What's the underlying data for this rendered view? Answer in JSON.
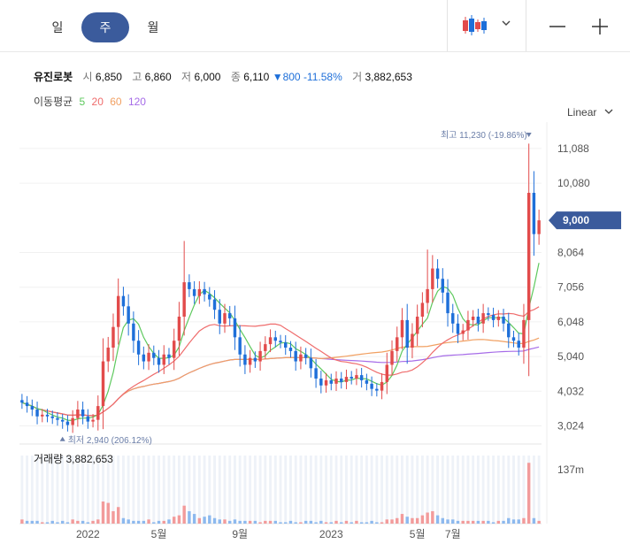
{
  "period_tabs": [
    {
      "label": "일",
      "active": false
    },
    {
      "label": "주",
      "active": true
    },
    {
      "label": "월",
      "active": false
    }
  ],
  "toolbar": {
    "chart_type_icon": "candlestick-icon",
    "dropdown_icon": "chevron-down-icon",
    "zoom_out_icon": "minus-icon",
    "zoom_in_icon": "plus-icon"
  },
  "stock": {
    "name": "유진로봇",
    "open_label": "시",
    "open": "6,850",
    "high_label": "고",
    "high": "6,860",
    "low_label": "저",
    "low": "6,000",
    "close_label": "종",
    "close": "6,110",
    "change": "▼800",
    "change_pct": "-11.58%",
    "volume_label": "거",
    "volume": "3,882,653"
  },
  "ma": {
    "label": "이동평균",
    "periods": [
      "5",
      "20",
      "60",
      "120"
    ]
  },
  "scale_label": "Linear",
  "colors": {
    "up": "#e24b4b",
    "down": "#1e6fd9",
    "ma5": "#5ec95e",
    "ma20": "#ef6c6c",
    "ma60": "#f1a062",
    "ma120": "#a66ce8",
    "accent": "#3b5b9c"
  },
  "chart_data": {
    "type": "candlestick",
    "y_ticks": [
      "11,088",
      "10,080",
      "8,064",
      "7,056",
      "6,048",
      "5,040",
      "4,032",
      "3,024"
    ],
    "y_tick_values": [
      11088,
      10080,
      8064,
      7056,
      6048,
      5040,
      4032,
      3024
    ],
    "x_labels": [
      "2022",
      "5월",
      "9월",
      "2023",
      "5월",
      "7월"
    ],
    "current_price_label": "9,000",
    "current_price": 9000,
    "high_annotation": "최고 11,230 (-19.86%)",
    "low_annotation": "최저 2,940 (206.12%)",
    "volume_title": "거래량",
    "volume_value": "3,882,653",
    "volume_tick": "137m",
    "closes": [
      3700,
      3600,
      3500,
      3300,
      3350,
      3300,
      3250,
      3200,
      3150,
      3050,
      3250,
      3500,
      3300,
      3150,
      3200,
      3600,
      4900,
      5300,
      5900,
      6800,
      6500,
      6000,
      5500,
      5100,
      4900,
      5150,
      5000,
      4800,
      5100,
      5000,
      5500,
      6200,
      7200,
      7000,
      6800,
      7000,
      6850,
      6700,
      6400,
      6000,
      6300,
      6150,
      5600,
      5100,
      4800,
      5000,
      4900,
      5200,
      5400,
      5600,
      5500,
      5450,
      5300,
      5200,
      4900,
      5100,
      5000,
      4700,
      4400,
      4200,
      4350,
      4250,
      4400,
      4300,
      4450,
      4400,
      4500,
      4350,
      4250,
      4100,
      4050,
      4300,
      4800,
      5200,
      5600,
      6100,
      5300,
      5700,
      6200,
      6600,
      7000,
      7600,
      7300,
      6900,
      6300,
      6000,
      5700,
      5800,
      6100,
      6200,
      6000,
      6300,
      6250,
      6100,
      6200,
      6000,
      5600,
      5500,
      5300,
      6100,
      9800,
      8600,
      9000
    ],
    "volume_pct": [
      3,
      2,
      2,
      2,
      1,
      1,
      2,
      1,
      2,
      1,
      3,
      2,
      2,
      1,
      2,
      3,
      16,
      15,
      9,
      12,
      4,
      3,
      2,
      2,
      2,
      3,
      1,
      2,
      2,
      3,
      5,
      6,
      13,
      9,
      7,
      4,
      5,
      6,
      4,
      3,
      3,
      2,
      3,
      2,
      2,
      2,
      2,
      1,
      2,
      2,
      2,
      1,
      1,
      2,
      1,
      1,
      2,
      2,
      1,
      2,
      1,
      1,
      2,
      1,
      2,
      1,
      2,
      1,
      1,
      2,
      1,
      1,
      3,
      3,
      4,
      7,
      5,
      4,
      4,
      6,
      8,
      9,
      6,
      4,
      3,
      3,
      2,
      2,
      2,
      2,
      2,
      2,
      2,
      1,
      2,
      2,
      4,
      3,
      3,
      4,
      44,
      4,
      2
    ]
  }
}
